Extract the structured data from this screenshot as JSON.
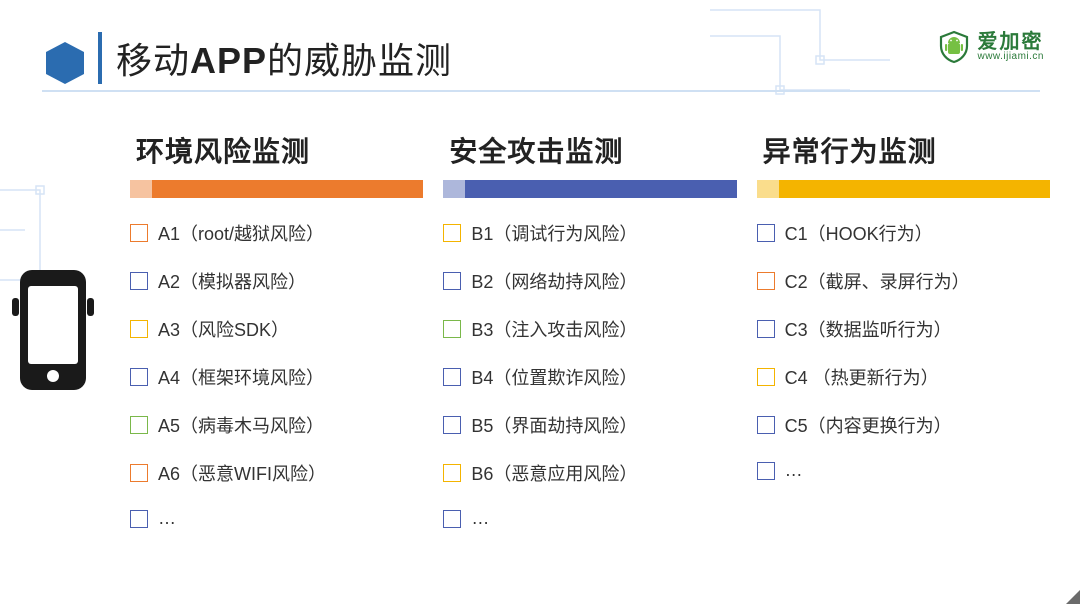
{
  "title": {
    "pre": "移动",
    "bold": "APP",
    "post": "的威胁监测"
  },
  "logo": {
    "cn": "爱加密",
    "url": "www.ijiami.cn"
  },
  "app_icon_label": "APP",
  "columns": [
    {
      "title": "环境风险监测",
      "bar_color": "#ec7b2d",
      "items": [
        {
          "label": "A1（root/越狱风险）",
          "checkbox_color": "#ec7b2d"
        },
        {
          "label": "A2（模拟器风险）",
          "checkbox_color": "#4a5fb0"
        },
        {
          "label": "A3（风险SDK）",
          "checkbox_color": "#f4b400"
        },
        {
          "label": "A4（框架环境风险）",
          "checkbox_color": "#4a5fb0"
        },
        {
          "label": "A5（病毒木马风险）",
          "checkbox_color": "#7ab84a"
        },
        {
          "label": "A6（恶意WIFI风险）",
          "checkbox_color": "#ec7b2d"
        },
        {
          "label": "…",
          "checkbox_color": "#4a5fb0"
        }
      ]
    },
    {
      "title": "安全攻击监测",
      "bar_color": "#4a5fb0",
      "items": [
        {
          "label": "B1（调试行为风险）",
          "checkbox_color": "#f4b400"
        },
        {
          "label": "B2（网络劫持风险）",
          "checkbox_color": "#4a5fb0"
        },
        {
          "label": "B3（注入攻击风险）",
          "checkbox_color": "#7ab84a"
        },
        {
          "label": "B4（位置欺诈风险）",
          "checkbox_color": "#4a5fb0"
        },
        {
          "label": "B5（界面劫持风险）",
          "checkbox_color": "#4a5fb0"
        },
        {
          "label": "B6（恶意应用风险）",
          "checkbox_color": "#f4b400"
        },
        {
          "label": "…",
          "checkbox_color": "#4a5fb0"
        }
      ]
    },
    {
      "title": "异常行为监测",
      "bar_color": "#f4b400",
      "items": [
        {
          "label": "C1（HOOK行为）",
          "checkbox_color": "#4a5fb0"
        },
        {
          "label": "C2（截屏、录屏行为）",
          "checkbox_color": "#ec7b2d"
        },
        {
          "label": "C3（数据监听行为）",
          "checkbox_color": "#4a5fb0"
        },
        {
          "label": "C4 （热更新行为）",
          "checkbox_color": "#f4b400"
        },
        {
          "label": "C5（内容更换行为）",
          "checkbox_color": "#4a5fb0"
        },
        {
          "label": "…",
          "checkbox_color": "#4a5fb0"
        }
      ]
    }
  ]
}
